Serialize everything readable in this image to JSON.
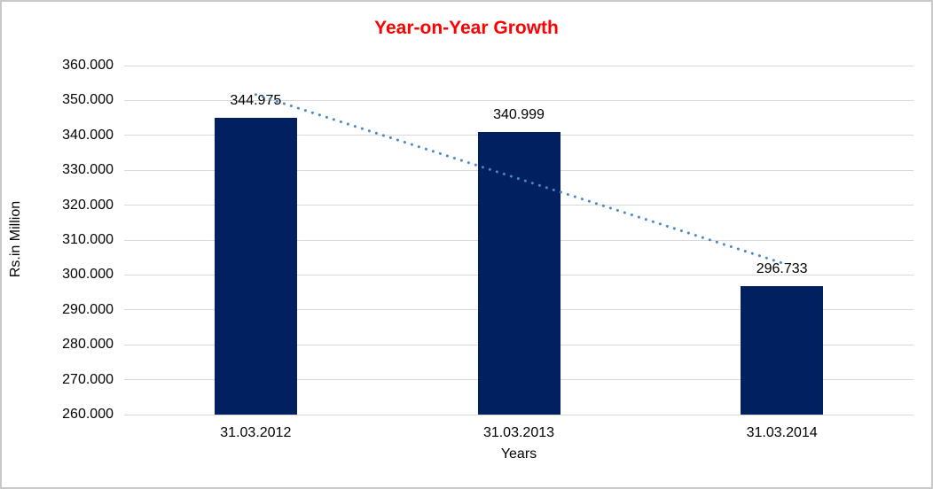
{
  "chart_data": {
    "type": "bar",
    "title": "Year-on-Year Growth",
    "categories": [
      "31.03.2012",
      "31.03.2013",
      "31.03.2014"
    ],
    "values": [
      344.975,
      340.999,
      296.733
    ],
    "data_labels": [
      "344.975",
      "340.999",
      "296.733"
    ],
    "xlabel": "Years",
    "ylabel": "Rs.in Million",
    "ylim": [
      260,
      360
    ],
    "ytick_step": 10,
    "ytick_labels_top_to_bottom": [
      "360.000",
      "350.000",
      "340.000",
      "330.000",
      "320.000",
      "310.000",
      "300.000",
      "290.000",
      "280.000",
      "270.000",
      "260.000"
    ],
    "grid": true,
    "legend": "none",
    "trendline": {
      "type": "linear",
      "style": "dotted",
      "series": "values"
    },
    "colors": {
      "bar": "#002060",
      "trendline": "#4a86c8",
      "gridline": "#d9d9d9",
      "title": "#ff0000",
      "axis_text": "#000000",
      "frame_border": "#c9c9c9",
      "background": "#ffffff"
    }
  }
}
